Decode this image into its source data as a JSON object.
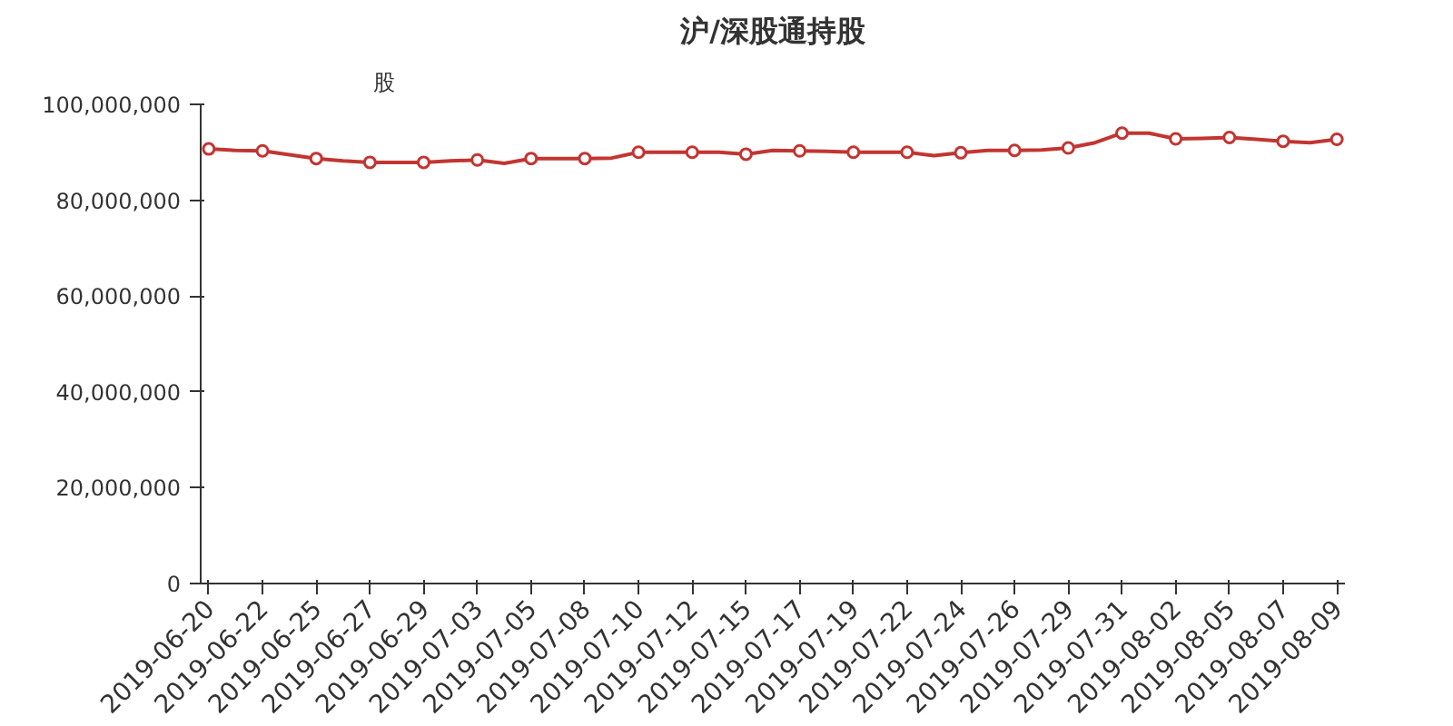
{
  "chart_data": {
    "type": "line",
    "title": "沪/深股通持股",
    "ylabel": "股",
    "categories": [
      "2019-06-20",
      null,
      "2019-06-22",
      null,
      "2019-06-25",
      null,
      "2019-06-27",
      null,
      "2019-06-29",
      null,
      "2019-07-03",
      null,
      "2019-07-05",
      null,
      "2019-07-08",
      null,
      "2019-07-10",
      null,
      "2019-07-12",
      null,
      "2019-07-15",
      null,
      "2019-07-17",
      null,
      "2019-07-19",
      null,
      "2019-07-22",
      null,
      "2019-07-24",
      null,
      "2019-07-26",
      null,
      "2019-07-29",
      null,
      "2019-07-31",
      null,
      "2019-08-02",
      null,
      "2019-08-05",
      null,
      "2019-08-07",
      null,
      "2019-08-09"
    ],
    "series": [
      {
        "color": "#c23531",
        "values": [
          90700000.0,
          90400000.0,
          90300000.0,
          89500000.0,
          88700000.0,
          88200000.0,
          87900000.0,
          87900000.0,
          87900000.0,
          88200000.0,
          88400000.0,
          87700000.0,
          88700000.0,
          88700000.0,
          88700000.0,
          88800000.0,
          90000000.0,
          90000000.0,
          90000000.0,
          90000000.0,
          89600000.0,
          90400000.0,
          90300000.0,
          90200000.0,
          90000000.0,
          90000000.0,
          90000000.0,
          89300000.0,
          89900000.0,
          90400000.0,
          90400000.0,
          90500000.0,
          90900000.0,
          92000000.0,
          94000000.0,
          94000000.0,
          92800000.0,
          92900000.0,
          93100000.0,
          92700000.0,
          92300000.0,
          92000000.0,
          92700000.0
        ]
      }
    ],
    "ylim": [
      0,
      100000000
    ],
    "yticks": [
      {
        "value": 0,
        "label": "0"
      },
      {
        "value": 20000000,
        "label": "20,000,000"
      },
      {
        "value": 40000000,
        "label": "40,000,000"
      },
      {
        "value": 60000000,
        "label": "60,000,000"
      },
      {
        "value": 80000000,
        "label": "80,000,000"
      },
      {
        "value": 100000000,
        "label": "100,000,000"
      }
    ],
    "grid": false,
    "marker": "circle",
    "line_style": "solid"
  }
}
